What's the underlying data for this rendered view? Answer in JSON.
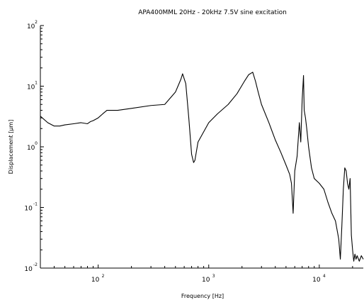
{
  "chart_data": {
    "type": "line",
    "title": "APA400MML 20Hz - 20kHz 7.5V sine excitation",
    "xlabel": "Frequency [Hz]",
    "ylabel": "Displacement [µm]",
    "x_scale": "log",
    "y_scale": "log",
    "xlim": [
      30,
      25000
    ],
    "ylim": [
      0.01,
      100
    ],
    "x_ticks": [
      {
        "value": 100,
        "base": "10",
        "exp": "2"
      },
      {
        "value": 1000,
        "base": "10",
        "exp": "3"
      },
      {
        "value": 10000,
        "base": "10",
        "exp": "4"
      }
    ],
    "y_ticks": [
      {
        "value": 0.01,
        "base": "10",
        "exp": "-2"
      },
      {
        "value": 0.1,
        "base": "10",
        "exp": "-1"
      },
      {
        "value": 1,
        "base": "10",
        "exp": "0"
      },
      {
        "value": 10,
        "base": "10",
        "exp": "1"
      },
      {
        "value": 100,
        "base": "10",
        "exp": "2"
      }
    ],
    "grid": false,
    "legend": "none",
    "line_color": "#000000",
    "series": [
      {
        "x": [
          30,
          35,
          40,
          45,
          50,
          60,
          70,
          80,
          85,
          90,
          100,
          110,
          120,
          150,
          200,
          300,
          400,
          500,
          560,
          580,
          620,
          660,
          700,
          730,
          750,
          800,
          1000,
          1200,
          1500,
          1800,
          2100,
          2300,
          2500,
          2650,
          2800,
          3000,
          3500,
          4000,
          4500,
          5000,
          5400,
          5600,
          5800,
          6000,
          6300,
          6600,
          6800,
          7000,
          7200,
          7300,
          7500,
          7700,
          8000,
          8500,
          9000,
          10000,
          11000,
          12000,
          13000,
          14000,
          15000,
          15500,
          16000,
          16500,
          17000,
          17500,
          18000,
          18500,
          19000,
          19500,
          20000,
          20500,
          21000,
          21500,
          22000,
          23000,
          24000,
          25000
        ],
        "y": [
          3.2,
          2.5,
          2.2,
          2.2,
          2.3,
          2.4,
          2.5,
          2.4,
          2.6,
          2.7,
          3.0,
          3.5,
          4.0,
          4.0,
          4.3,
          4.8,
          5.0,
          8.0,
          13.0,
          16.0,
          11.0,
          3.0,
          0.75,
          0.55,
          0.6,
          1.2,
          2.5,
          3.5,
          5.0,
          7.5,
          12.0,
          15.5,
          17.0,
          12.0,
          8.0,
          5.0,
          2.5,
          1.3,
          0.8,
          0.5,
          0.35,
          0.25,
          0.08,
          0.4,
          0.7,
          2.5,
          1.2,
          6.0,
          15.0,
          4.0,
          3.0,
          2.0,
          1.0,
          0.45,
          0.3,
          0.25,
          0.2,
          0.12,
          0.08,
          0.06,
          0.03,
          0.014,
          0.05,
          0.2,
          0.45,
          0.4,
          0.25,
          0.2,
          0.3,
          0.035,
          0.02,
          0.013,
          0.017,
          0.014,
          0.016,
          0.013,
          0.016,
          0.014
        ]
      }
    ]
  }
}
